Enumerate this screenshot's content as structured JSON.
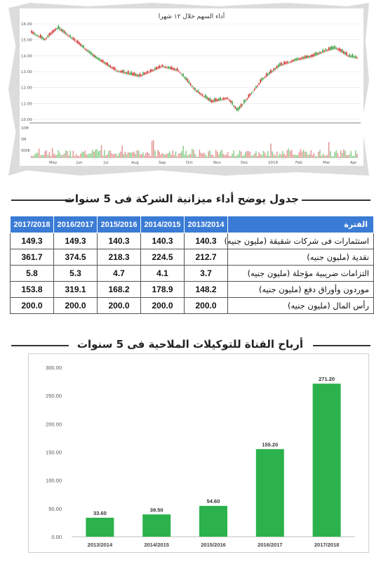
{
  "stock": {
    "title": "أداء السهم خلال ١٢ شهرا",
    "y_ticks": [
      "16.00",
      "15.00",
      "14.00",
      "13.00",
      "12.00",
      "11.00",
      "10.00"
    ],
    "months": [
      "May",
      "Jun",
      "Jul",
      "Aug",
      "Sep",
      "Oct",
      "Nov",
      "Dec",
      "2019",
      "Feb",
      "Mar",
      "Apr"
    ],
    "vol_ticks": [
      "10M",
      "5M",
      "500K"
    ]
  },
  "table": {
    "title": "جدول يوضح أداء ميزانية الشركة فى 5 سنوات",
    "headers": [
      "2017/2018",
      "2016/2017",
      "2015/2016",
      "2014/2015",
      "2013/2014",
      "الفترة"
    ],
    "rows": [
      {
        "values": [
          "149.3",
          "149.3",
          "140.3",
          "140.3",
          "140.3"
        ],
        "label": "استثمارات فى شركات شقيقة (مليون جنيه)"
      },
      {
        "values": [
          "361.7",
          "374.5",
          "218.3",
          "224.5",
          "212.7"
        ],
        "label": "نقدية (مليون جنيه)"
      },
      {
        "values": [
          "5.8",
          "5.3",
          "4.7",
          "4.1",
          "3.7"
        ],
        "label": "التزامات ضريبية مؤجلة (مليون جنيه)"
      },
      {
        "values": [
          "153.8",
          "319.1",
          "168.2",
          "178.9",
          "148.2"
        ],
        "label": "موردون وأوراق دفع (مليون جنيه)"
      },
      {
        "values": [
          "200.0",
          "200.0",
          "200.0",
          "200.0",
          "200.0"
        ],
        "label": "رأس المال (مليون جنيه)"
      }
    ]
  },
  "profits": {
    "title": "أرباح القناة للتوكيلات الملاحية فى 5 سنوات"
  },
  "colors": {
    "bar": "#2bb24c",
    "header": "#3a7bd5",
    "up": "#3c9a3c",
    "down": "#d12a2a"
  },
  "chart_data": {
    "type": "bar",
    "categories": [
      "2013/2014",
      "2014/2015",
      "2015/2016",
      "2016/2017",
      "2017/2018"
    ],
    "values": [
      33.6,
      39.5,
      54.6,
      155.2,
      271.2
    ],
    "value_labels": [
      "33.60",
      "39.50",
      "54.60",
      "155.20",
      "271.20"
    ],
    "y_ticks": [
      "0.00",
      "50.00",
      "100.00",
      "150.00",
      "200.00",
      "250.00",
      "300.00"
    ],
    "ylim": [
      0,
      300
    ],
    "grid": false
  }
}
